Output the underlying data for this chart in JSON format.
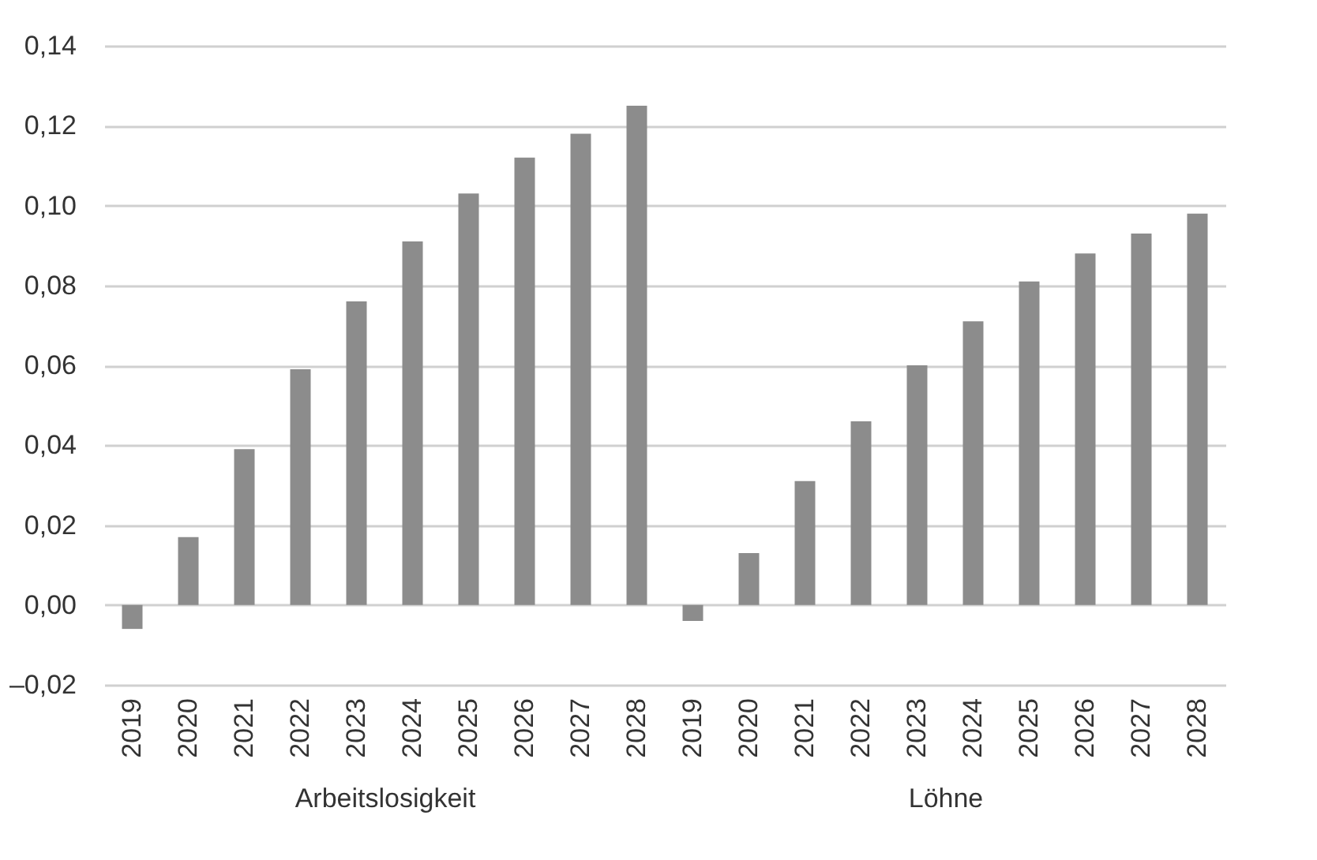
{
  "chart_data": [
    {
      "type": "bar",
      "xlabel": "Arbeitslosigkeit",
      "categories": [
        "2019",
        "2020",
        "2021",
        "2022",
        "2023",
        "2024",
        "2025",
        "2026",
        "2027",
        "2028"
      ],
      "values": [
        -0.006,
        0.017,
        0.039,
        0.059,
        0.076,
        0.091,
        0.103,
        0.112,
        0.118,
        0.125
      ],
      "color": "#8c8c8c",
      "ylim": [
        -0.02,
        0.14
      ],
      "yticks": [
        {
          "value": -0.02,
          "label": "–0,02"
        },
        {
          "value": 0,
          "label": "0,00"
        },
        {
          "value": 0.02,
          "label": "0,02"
        },
        {
          "value": 0.04,
          "label": "0,04"
        },
        {
          "value": 0.06,
          "label": "0,06"
        },
        {
          "value": 0.08,
          "label": "0,08"
        },
        {
          "value": 0.1,
          "label": "0,10"
        },
        {
          "value": 0.12,
          "label": "0,12"
        },
        {
          "value": 0.14,
          "label": "0,14"
        }
      ],
      "grid": "y"
    },
    {
      "type": "bar",
      "xlabel": "Löhne",
      "categories": [
        "2019",
        "2020",
        "2021",
        "2022",
        "2023",
        "2024",
        "2025",
        "2026",
        "2027",
        "2028"
      ],
      "values": [
        -0.004,
        0.013,
        0.031,
        0.046,
        0.06,
        0.071,
        0.081,
        0.088,
        0.093,
        0.098
      ],
      "color": "#8c8c8c",
      "ylim": [
        -0.02,
        0.14
      ],
      "yticks": [
        -0.02,
        0,
        0.02,
        0.04,
        0.06,
        0.08,
        0.1,
        0.12,
        0.14
      ],
      "grid": "y",
      "tick_labels": "x"
    }
  ]
}
